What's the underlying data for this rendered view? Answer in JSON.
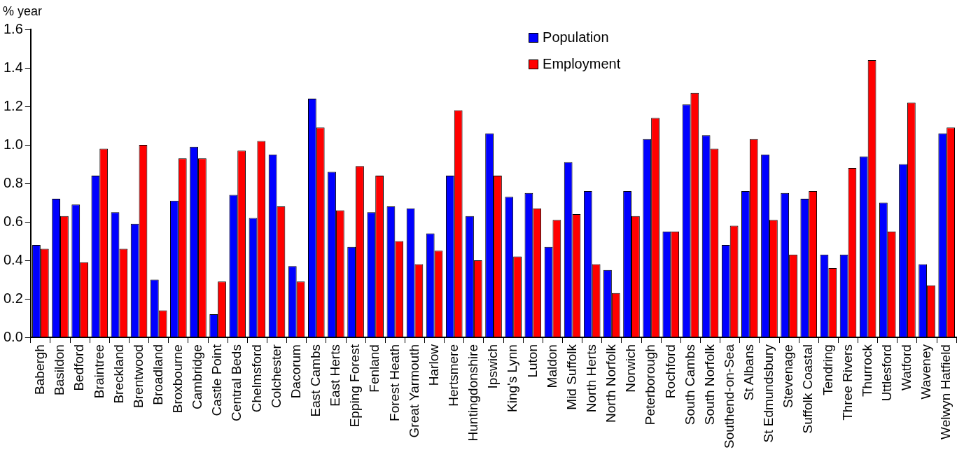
{
  "chart_data": {
    "type": "bar",
    "ylabel": "% year",
    "categories": [
      "Babergh",
      "Basildon",
      "Bedford",
      "Braintree",
      "Breckland",
      "Brentwood",
      "Broadland",
      "Broxbourne",
      "Cambridge",
      "Castle Point",
      "Central Beds",
      "Chelmsford",
      "Colchester",
      "Dacorum",
      "East Cambs",
      "East Herts",
      "Epping Forest",
      "Fenland",
      "Forest Heath",
      "Great Yarmouth",
      "Harlow",
      "Hertsmere",
      "Huntingdonshire",
      "Ipswich",
      "King's Lynn",
      "Luton",
      "Maldon",
      "Mid Suffolk",
      "North Herts",
      "North Norfolk",
      "Norwich",
      "Peterborough",
      "Rochford",
      "South Cambs",
      "South Norfolk",
      "Southend-on-Sea",
      "St Albans",
      "St Edmundsbury",
      "Stevenage",
      "Suffolk Coastal",
      "Tendring",
      "Three Rivers",
      "Thurrock",
      "Uttlesford",
      "Watford",
      "Waveney",
      "Welwyn Hatfield"
    ],
    "series": [
      {
        "name": "Population",
        "color": "#0000ff",
        "values": [
          0.48,
          0.72,
          0.69,
          0.84,
          0.65,
          0.59,
          0.3,
          0.71,
          0.99,
          0.12,
          0.74,
          0.62,
          0.95,
          0.37,
          1.24,
          0.86,
          0.47,
          0.65,
          0.68,
          0.67,
          0.54,
          0.84,
          0.63,
          1.06,
          0.73,
          0.75,
          0.47,
          0.91,
          0.76,
          0.35,
          0.76,
          1.03,
          0.55,
          1.21,
          1.05,
          0.48,
          0.76,
          0.95,
          0.75,
          0.72,
          0.43,
          0.43,
          0.94,
          0.7,
          0.9,
          0.38,
          1.06
        ]
      },
      {
        "name": "Employment",
        "color": "#ff0000",
        "values": [
          0.46,
          0.63,
          0.39,
          0.98,
          0.46,
          1.0,
          0.14,
          0.93,
          0.93,
          0.29,
          0.97,
          1.02,
          0.68,
          0.29,
          1.09,
          0.66,
          0.89,
          0.84,
          0.5,
          0.38,
          0.45,
          1.18,
          0.4,
          0.84,
          0.42,
          0.67,
          0.61,
          0.64,
          0.38,
          0.23,
          0.63,
          1.14,
          0.55,
          1.27,
          0.98,
          0.58,
          1.03,
          0.61,
          0.43,
          0.76,
          0.36,
          0.88,
          1.44,
          0.55,
          1.22,
          0.27,
          1.09
        ]
      }
    ],
    "ylim": [
      0,
      1.6
    ],
    "yticks": [
      {
        "value": 0,
        "label": "0.0"
      },
      {
        "value": 0.2,
        "label": "0.2"
      },
      {
        "value": 0.4,
        "label": "0.4"
      },
      {
        "value": 0.6,
        "label": "0.6"
      },
      {
        "value": 0.8,
        "label": "0.8"
      },
      {
        "value": 1,
        "label": "1.0"
      },
      {
        "value": 1.2,
        "label": "1.2"
      },
      {
        "value": 1.4,
        "label": "1.4"
      },
      {
        "value": 1.6,
        "label": "1.6"
      }
    ],
    "grid": false,
    "legend": "top"
  }
}
